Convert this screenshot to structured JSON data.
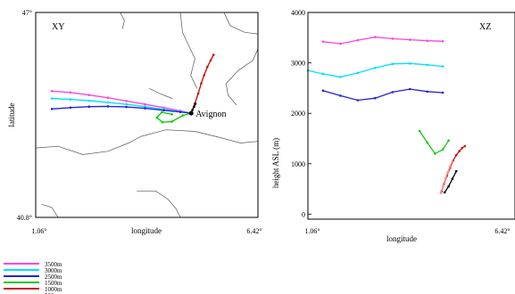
{
  "chart_data": [
    {
      "type": "line",
      "panel_label": "XY",
      "title": "",
      "xlabel": "longitude",
      "ylabel": "latitude",
      "x_tick_labels": [
        "1.06°",
        "6.42°"
      ],
      "y_tick_labels": [
        "40.8°",
        "47°"
      ],
      "xlim": [
        1.06,
        6.42
      ],
      "ylim": [
        40.8,
        47.0
      ],
      "grid": false,
      "annotation": {
        "label": "Avignon",
        "x": 4.81,
        "y": 43.95
      },
      "coastline_lines": [
        [
          [
            1.06,
            42.9
          ],
          [
            1.6,
            42.95
          ],
          [
            2.2,
            42.7
          ],
          [
            2.8,
            42.8
          ],
          [
            3.3,
            43.05
          ],
          [
            3.6,
            43.25
          ],
          [
            4.2,
            43.45
          ],
          [
            4.9,
            43.4
          ],
          [
            5.4,
            43.25
          ],
          [
            6.0,
            43.05
          ],
          [
            6.42,
            43.1
          ]
        ],
        [
          [
            3.1,
            47.0
          ],
          [
            3.2,
            46.75
          ],
          [
            3.15,
            46.5
          ]
        ],
        [
          [
            4.55,
            47.0
          ],
          [
            4.6,
            46.4
          ],
          [
            4.75,
            46.0
          ],
          [
            4.9,
            45.6
          ],
          [
            4.8,
            45.1
          ],
          [
            4.95,
            44.7
          ]
        ],
        [
          [
            5.6,
            47.0
          ],
          [
            5.75,
            46.6
          ],
          [
            6.1,
            46.4
          ],
          [
            6.42,
            46.35
          ]
        ],
        [
          [
            6.42,
            45.9
          ],
          [
            6.3,
            45.55
          ],
          [
            5.95,
            45.25
          ],
          [
            5.65,
            44.85
          ],
          [
            5.7,
            44.5
          ],
          [
            5.9,
            44.2
          ]
        ],
        [
          [
            3.8,
            44.7
          ],
          [
            4.05,
            44.55
          ],
          [
            4.35,
            44.4
          ]
        ],
        [
          [
            3.5,
            41.6
          ],
          [
            3.95,
            41.6
          ],
          [
            4.25,
            41.35
          ],
          [
            4.45,
            41.05
          ],
          [
            4.55,
            40.8
          ]
        ],
        [
          [
            1.2,
            41.2
          ],
          [
            1.45,
            41.1
          ],
          [
            1.6,
            40.8
          ]
        ]
      ],
      "series": [
        {
          "color": "#ff44dd",
          "x": [
            1.45,
            1.9,
            2.35,
            2.8,
            3.25,
            3.7,
            4.15,
            4.55,
            4.81
          ],
          "y": [
            44.62,
            44.58,
            44.5,
            44.42,
            44.32,
            44.22,
            44.12,
            44.02,
            43.95
          ]
        },
        {
          "color": "#00e0ff",
          "x": [
            1.45,
            1.9,
            2.35,
            2.8,
            3.25,
            3.7,
            4.15,
            4.55,
            4.81
          ],
          "y": [
            44.4,
            44.37,
            44.33,
            44.28,
            44.22,
            44.15,
            44.07,
            44.0,
            43.95
          ]
        },
        {
          "color": "#2222dd",
          "x": [
            1.45,
            1.9,
            2.35,
            2.8,
            3.25,
            3.7,
            4.15,
            4.55,
            4.81
          ],
          "y": [
            44.08,
            44.12,
            44.15,
            44.16,
            44.14,
            44.1,
            44.04,
            43.99,
            43.95
          ]
        },
        {
          "color": "#11cc11",
          "x": [
            4.81,
            4.6,
            4.35,
            4.12,
            3.98,
            4.1,
            4.35
          ],
          "y": [
            43.95,
            43.88,
            43.7,
            43.68,
            43.82,
            43.98,
            43.92
          ]
        },
        {
          "color": "#cc1111",
          "x": [
            4.81,
            4.9,
            4.98,
            5.05,
            5.12,
            5.2,
            5.28,
            5.35
          ],
          "y": [
            43.95,
            44.25,
            44.55,
            44.85,
            45.1,
            45.35,
            45.55,
            45.72
          ]
        },
        {
          "color": "#000000",
          "x": [
            4.81,
            4.84,
            4.88,
            4.91
          ],
          "y": [
            43.95,
            44.05,
            44.15,
            44.24
          ]
        }
      ]
    },
    {
      "type": "line",
      "panel_label": "XZ",
      "title": "",
      "xlabel": "longitude",
      "ylabel": "height ASL (m)",
      "x_tick_labels": [
        "1.06°",
        "6.42°"
      ],
      "y_tick_labels": [
        "0",
        "1000",
        "2000",
        "3000",
        "4000"
      ],
      "xlim": [
        1.06,
        6.42
      ],
      "ylim": [
        -100,
        4000
      ],
      "grid": false,
      "series": [
        {
          "color": "#ff44dd",
          "x": [
            1.45,
            1.9,
            2.35,
            2.8,
            3.25,
            3.7,
            4.15,
            4.55
          ],
          "y": [
            3420,
            3380,
            3450,
            3510,
            3480,
            3460,
            3440,
            3430
          ]
        },
        {
          "color": "#00e0ff",
          "x": [
            1.06,
            1.45,
            1.9,
            2.35,
            2.8,
            3.25,
            3.7,
            4.15,
            4.55
          ],
          "y": [
            2850,
            2780,
            2720,
            2800,
            2900,
            2980,
            2990,
            2960,
            2930
          ]
        },
        {
          "color": "#2222dd",
          "x": [
            1.45,
            1.9,
            2.35,
            2.8,
            3.25,
            3.7,
            4.15,
            4.55
          ],
          "y": [
            2450,
            2350,
            2260,
            2300,
            2420,
            2480,
            2430,
            2410
          ]
        },
        {
          "color": "#11cc11",
          "x": [
            3.95,
            4.15,
            4.35,
            4.55,
            4.7
          ],
          "y": [
            1650,
            1420,
            1200,
            1280,
            1460
          ]
        },
        {
          "color": "#cc1111",
          "x": [
            4.52,
            4.58,
            4.66,
            4.74,
            4.82,
            4.9,
            4.98,
            5.05,
            5.12
          ],
          "y": [
            450,
            600,
            760,
            920,
            1060,
            1170,
            1250,
            1310,
            1350
          ]
        },
        {
          "color": "#ff8888",
          "x": [
            4.5,
            4.56,
            4.62,
            4.68,
            4.74,
            4.8
          ],
          "y": [
            420,
            560,
            700,
            830,
            950,
            1050
          ]
        },
        {
          "color": "#000000",
          "x": [
            4.6,
            4.7,
            4.8,
            4.9
          ],
          "y": [
            430,
            550,
            700,
            850
          ]
        }
      ]
    }
  ],
  "legend": [
    {
      "label": "3500m",
      "color": "#ff44dd"
    },
    {
      "label": "3000m",
      "color": "#00e0ff"
    },
    {
      "label": "2500m",
      "color": "#2222dd"
    },
    {
      "label": "1500m",
      "color": "#11cc11"
    },
    {
      "label": "1000m",
      "color": "#cc1111"
    },
    {
      "label": "500m",
      "color": "#000000"
    }
  ]
}
